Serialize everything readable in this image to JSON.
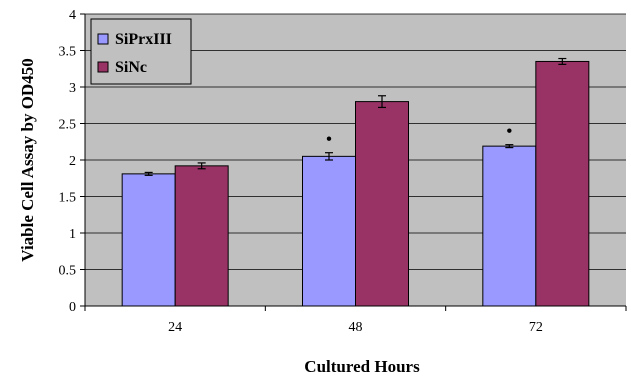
{
  "chart_data": {
    "type": "bar",
    "categories": [
      "24",
      "48",
      "72"
    ],
    "series": [
      {
        "name": "SiPrxIII",
        "color": "#9999ff",
        "values": [
          1.81,
          2.05,
          2.19
        ],
        "errors": [
          0.02,
          0.05,
          0.02
        ]
      },
      {
        "name": "SiNc",
        "color": "#993366",
        "values": [
          1.92,
          2.8,
          3.35
        ],
        "errors": [
          0.04,
          0.08,
          0.04
        ]
      }
    ],
    "xlabel": "Cultured Hours",
    "ylabel": "Viable Cell Assay by OD450",
    "ylim": [
      0,
      4
    ],
    "yticks": [
      "0",
      "0.5",
      "1",
      "1.5",
      "2",
      "2.5",
      "3",
      "3.5",
      "4"
    ],
    "grid": true,
    "plot_background": "#c0c0c0",
    "legend_position": "top-left",
    "significance_markers": [
      {
        "category": "48",
        "series": "SiPrxIII",
        "symbol": "•"
      },
      {
        "category": "72",
        "series": "SiPrxIII",
        "symbol": "•"
      }
    ]
  }
}
